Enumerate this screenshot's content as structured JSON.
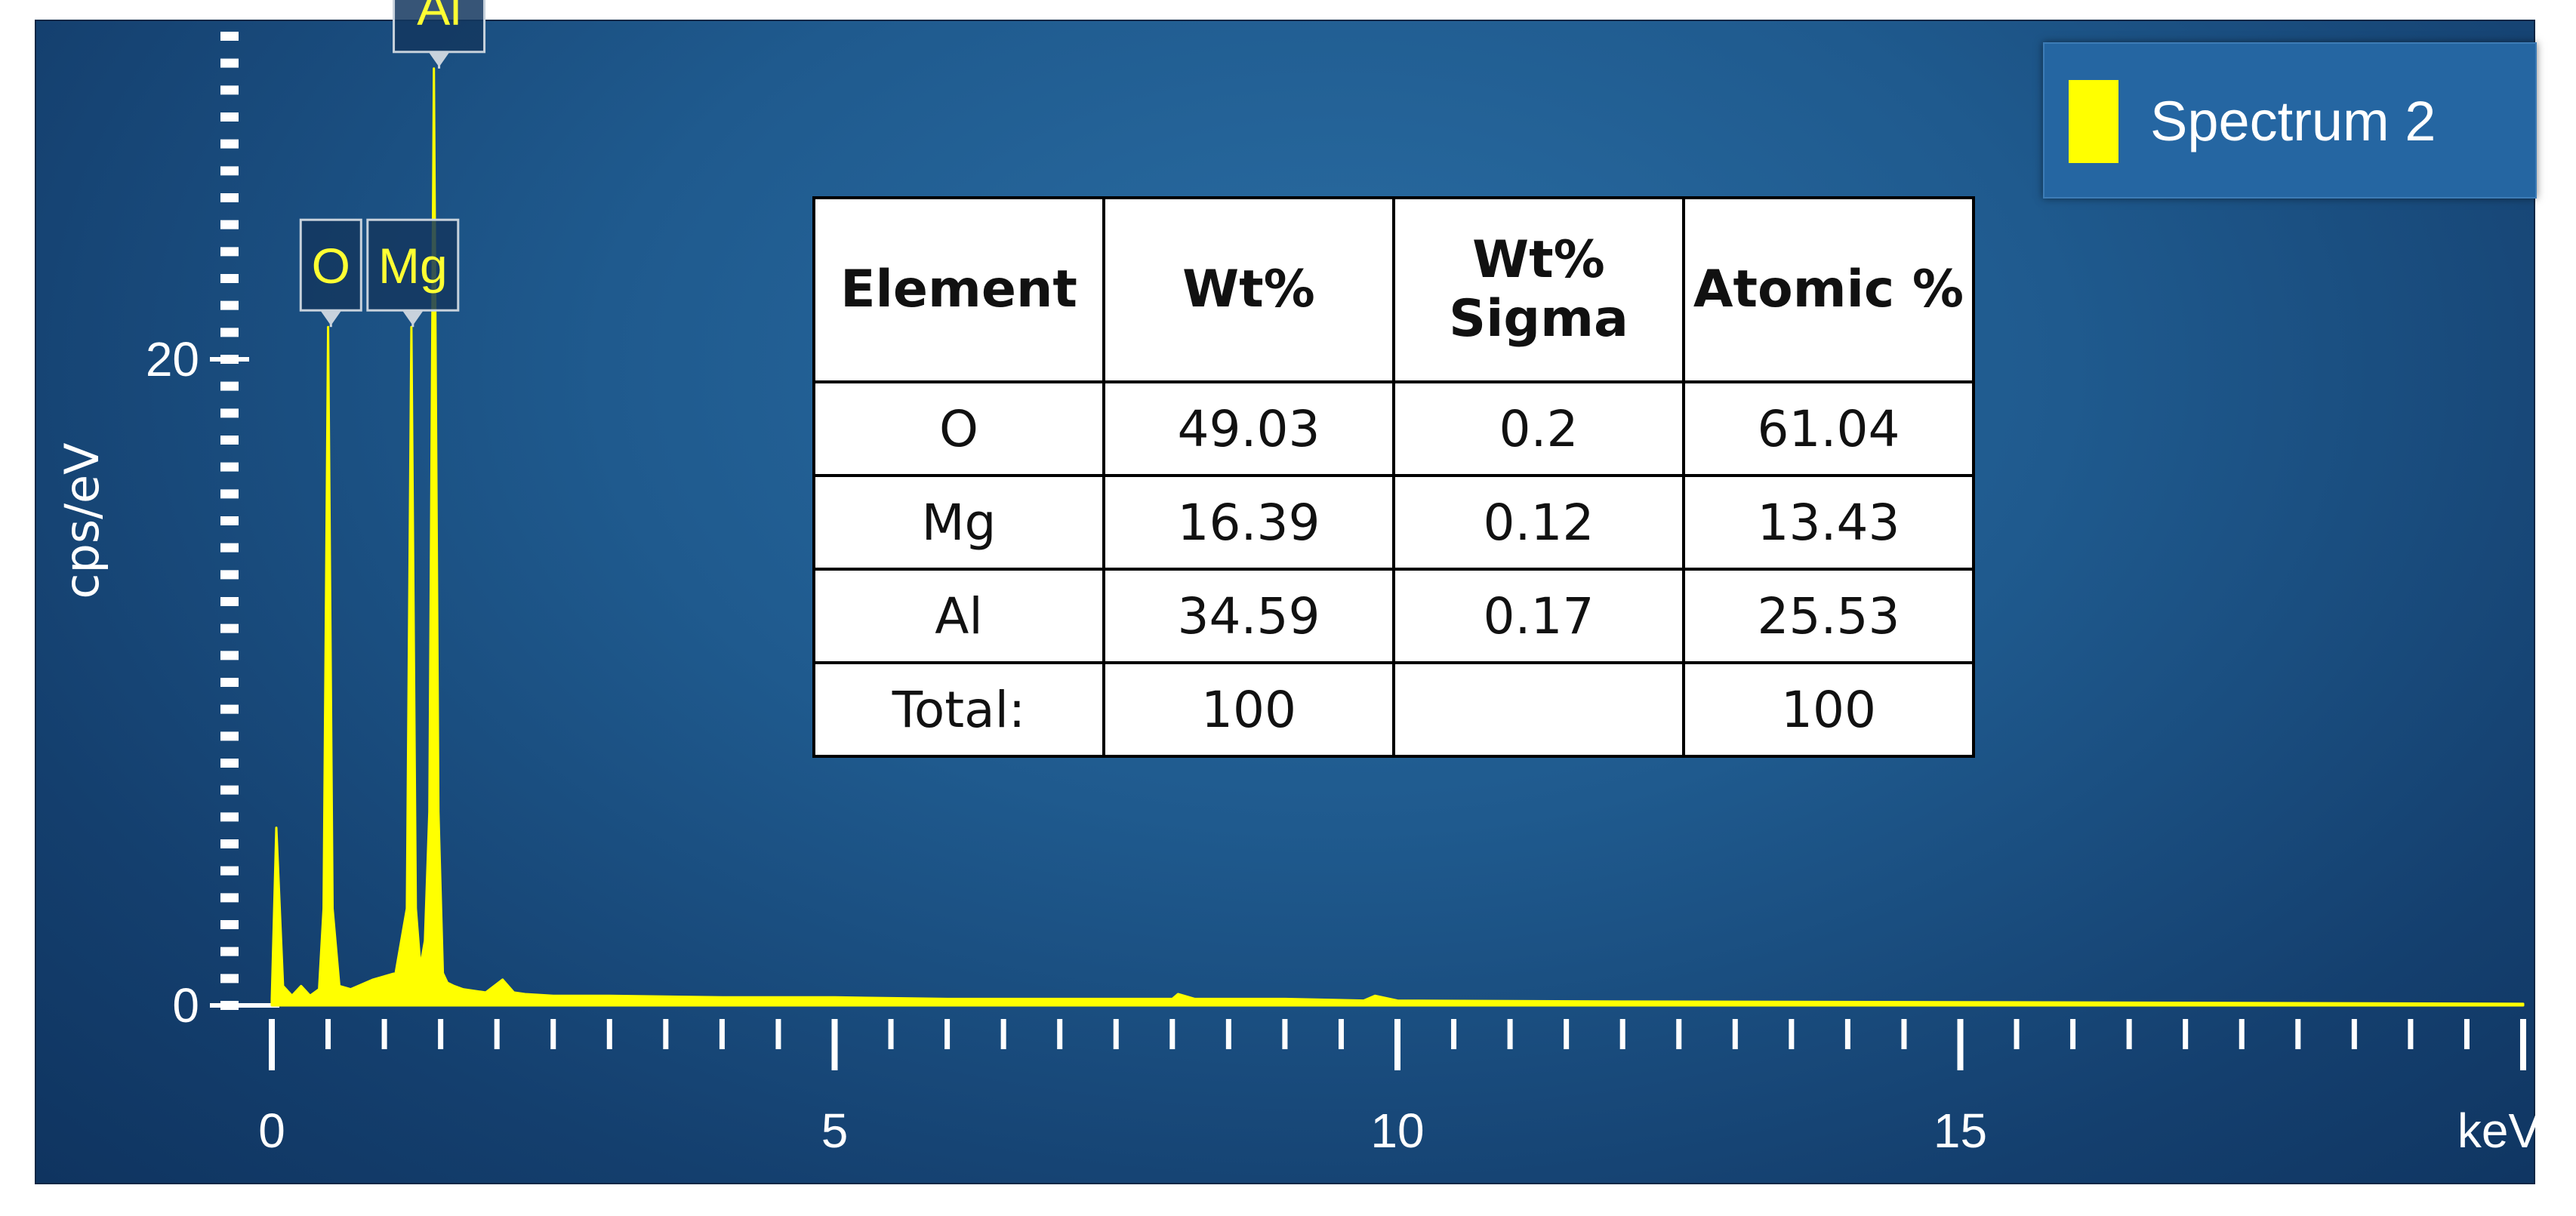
{
  "chart_data": {
    "type": "line",
    "title": "",
    "xlabel": "keV",
    "ylabel": "cps/eV",
    "xlim": [
      0,
      20
    ],
    "ylim": [
      0,
      30
    ],
    "x_ticks": [
      0,
      5,
      10,
      15
    ],
    "y_ticks": [
      0,
      20
    ],
    "grid": false,
    "legend": "top-right",
    "series": [
      {
        "name": "Spectrum 2",
        "color": "#ffff00",
        "x": [
          0.0,
          0.04,
          0.1,
          0.18,
          0.26,
          0.34,
          0.42,
          0.46,
          0.5,
          0.54,
          0.6,
          0.7,
          0.9,
          1.1,
          1.2,
          1.24,
          1.28,
          1.32,
          1.36,
          1.4,
          1.44,
          1.48,
          1.52,
          1.56,
          1.62,
          1.7,
          1.9,
          2.05,
          2.15,
          2.25,
          2.5,
          3.0,
          4.0,
          5.0,
          6.0,
          7.0,
          8.0,
          8.05,
          8.2,
          9.0,
          9.7,
          9.8,
          10.0,
          12.0,
          15.0,
          20.0
        ],
        "y": [
          0.2,
          5.5,
          0.6,
          0.3,
          0.6,
          0.3,
          0.5,
          3.0,
          21.0,
          3.0,
          0.6,
          0.5,
          0.8,
          1.0,
          3.0,
          21.0,
          3.0,
          1.2,
          2.0,
          6.0,
          29.0,
          6.0,
          1.0,
          0.7,
          0.6,
          0.5,
          0.4,
          0.8,
          0.4,
          0.35,
          0.3,
          0.3,
          0.25,
          0.25,
          0.2,
          0.2,
          0.2,
          0.35,
          0.2,
          0.2,
          0.15,
          0.3,
          0.15,
          0.12,
          0.1,
          0.05
        ]
      }
    ],
    "annotations": [
      {
        "text": "O",
        "x": 0.525
      },
      {
        "text": "Mg",
        "x": 1.253
      },
      {
        "text": "Al",
        "x": 1.486
      }
    ]
  },
  "legend": {
    "label": "Spectrum 2",
    "swatch_color": "#ffff00"
  },
  "table": {
    "headers": [
      "Element",
      "Wt%",
      "Wt%\nSigma",
      "Atomic %"
    ],
    "rows": [
      [
        "O",
        "49.03",
        "0.2",
        "61.04"
      ],
      [
        "Mg",
        "16.39",
        "0.12",
        "13.43"
      ],
      [
        "Al",
        "34.59",
        "0.17",
        "25.53"
      ],
      [
        "Total:",
        "100",
        "",
        "100"
      ]
    ]
  }
}
